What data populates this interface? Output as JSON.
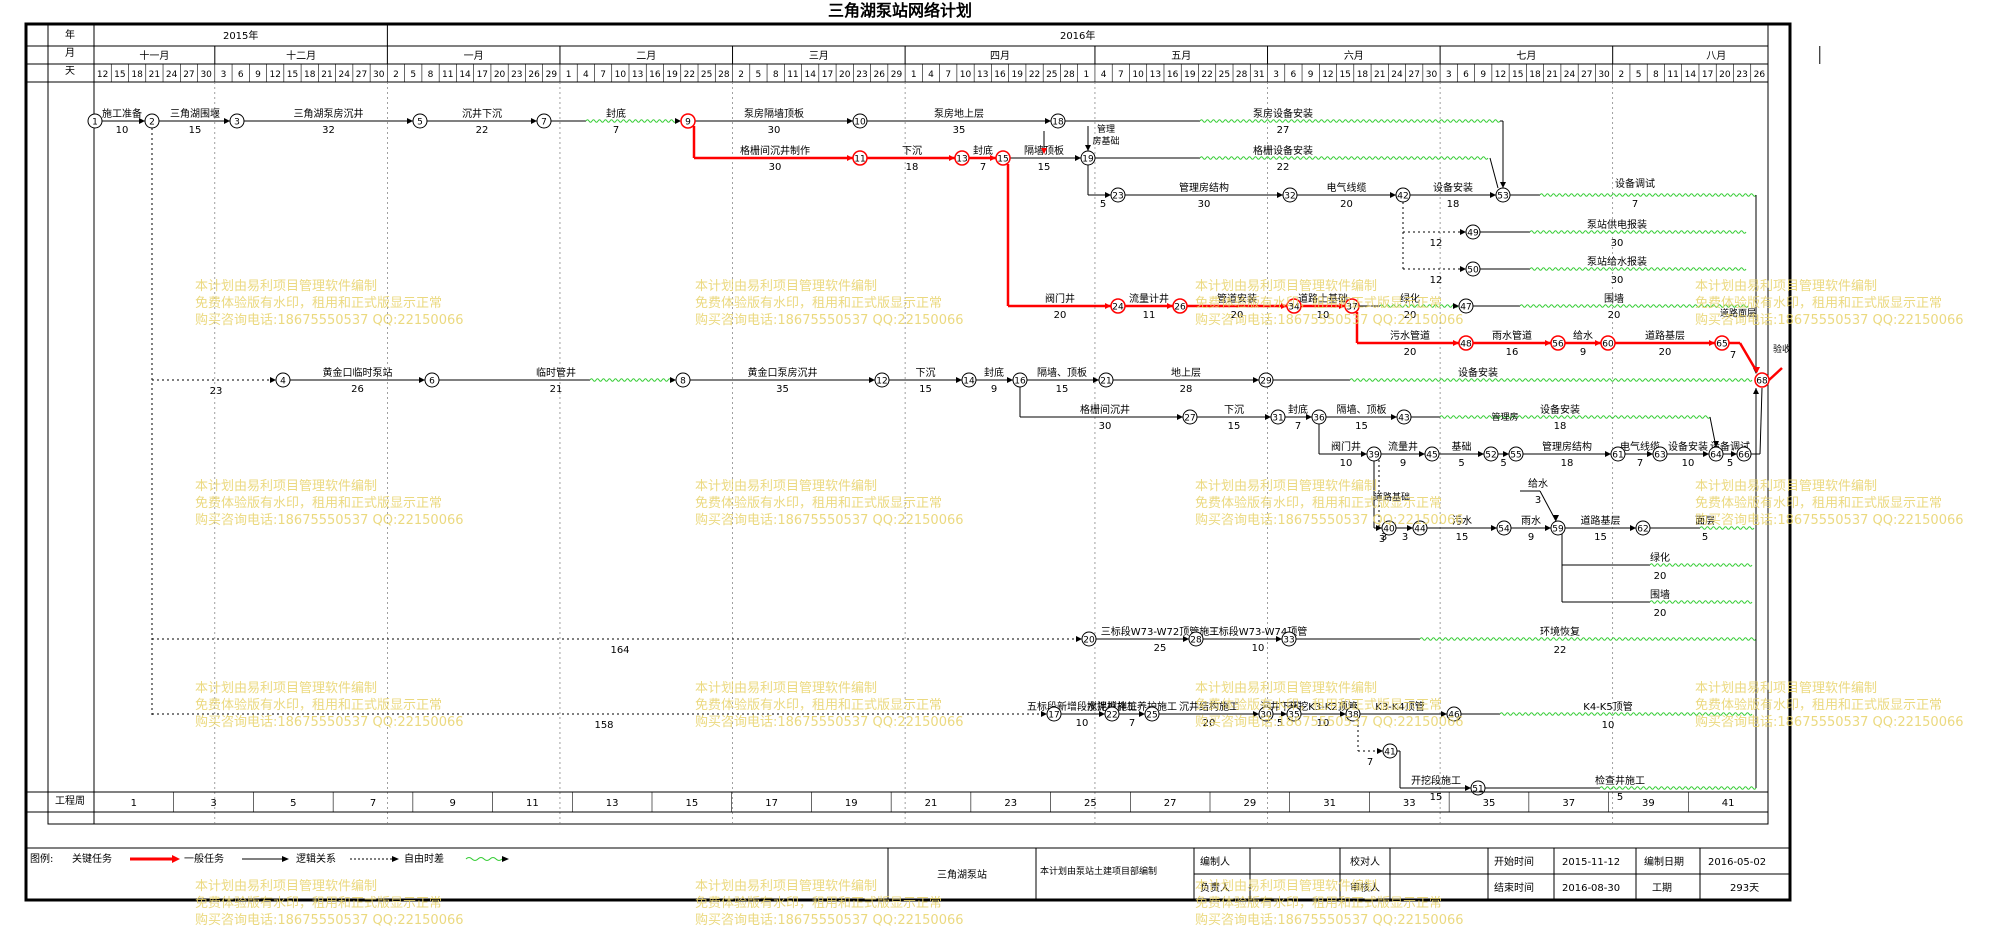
{
  "title": "三角湖泵站网络计划",
  "header": {
    "row_labels": {
      "year": "年",
      "month": "月",
      "day": "天"
    },
    "years": [
      "2015年",
      "2016年"
    ],
    "months": [
      "十一月",
      "十二月",
      "一月",
      "二月",
      "三月",
      "四月",
      "五月",
      "六月",
      "七月",
      "八月"
    ],
    "days": [
      "12",
      "15",
      "18",
      "21",
      "24",
      "27",
      "30",
      "3",
      "6",
      "9",
      "12",
      "15",
      "18",
      "21",
      "24",
      "27",
      "30",
      "2",
      "5",
      "8",
      "11",
      "14",
      "17",
      "20",
      "23",
      "26",
      "29",
      "1",
      "4",
      "7",
      "10",
      "13",
      "16",
      "19",
      "22",
      "25",
      "28",
      "2",
      "5",
      "8",
      "11",
      "14",
      "17",
      "20",
      "23",
      "26",
      "29",
      "1",
      "4",
      "7",
      "10",
      "13",
      "16",
      "19",
      "22",
      "25",
      "28",
      "1",
      "4",
      "7",
      "10",
      "13",
      "16",
      "19",
      "22",
      "25",
      "28",
      "31",
      "3",
      "6",
      "9",
      "12",
      "15",
      "18",
      "21",
      "24",
      "27",
      "30",
      "3",
      "6",
      "9",
      "12",
      "15",
      "18",
      "21",
      "24",
      "27",
      "30",
      "2",
      "5",
      "8",
      "11",
      "14",
      "17",
      "20",
      "23",
      "26"
    ]
  },
  "week_axis": {
    "label": "工程周",
    "values": [
      "1",
      "3",
      "5",
      "7",
      "9",
      "11",
      "13",
      "15",
      "17",
      "19",
      "21",
      "23",
      "25",
      "27",
      "29",
      "31",
      "33",
      "35",
      "37",
      "39",
      "41"
    ]
  },
  "nodes": [
    "1",
    "2",
    "3",
    "4",
    "5",
    "6",
    "7",
    "8",
    "9",
    "10",
    "11",
    "12",
    "13",
    "14",
    "15",
    "16",
    "17",
    "18",
    "19",
    "20",
    "21",
    "22",
    "23",
    "24",
    "25",
    "26",
    "27",
    "28",
    "29",
    "30",
    "31",
    "32",
    "33",
    "34",
    "35",
    "36",
    "37",
    "38",
    "39",
    "40",
    "41",
    "42",
    "43",
    "44",
    "45",
    "46",
    "47",
    "48",
    "49",
    "50",
    "51",
    "52",
    "53",
    "54",
    "55",
    "56",
    "57",
    "58",
    "59",
    "60",
    "61",
    "62",
    "63",
    "64",
    "65",
    "66",
    "68"
  ],
  "tasks": [
    {
      "name": "施工准备",
      "dur": "10"
    },
    {
      "name": "三角湖围堰",
      "dur": "15"
    },
    {
      "name": "三角湖泵房沉井",
      "dur": "32"
    },
    {
      "name": "沉井下沉",
      "dur": "22"
    },
    {
      "name": "封底",
      "dur": "7"
    },
    {
      "name": "泵房隔墙顶板",
      "dur": "30"
    },
    {
      "name": "泵房地上层",
      "dur": "35"
    },
    {
      "name": "泵房设备安装",
      "dur": "27"
    },
    {
      "name": "格栅间沉井制作",
      "dur": "30"
    },
    {
      "name": "下沉",
      "dur": "18"
    },
    {
      "name": "封底",
      "dur": "7"
    },
    {
      "name": "隔墙顶板",
      "dur": "15"
    },
    {
      "name": "管理房基础",
      "dur": "5"
    },
    {
      "name": "格栅设备安装",
      "dur": "22"
    },
    {
      "name": "管理房结构",
      "dur": "30"
    },
    {
      "name": "电气线缆",
      "dur": "20"
    },
    {
      "name": "设备安装",
      "dur": "18"
    },
    {
      "name": "设备调试",
      "dur": "7"
    },
    {
      "name": "泵站供电报装",
      "dur": "30"
    },
    {
      "name": "泵站给水报装",
      "dur": "30"
    },
    {
      "name": "阀门井",
      "dur": "20"
    },
    {
      "name": "流量计井",
      "dur": "11"
    },
    {
      "name": "管道安装",
      "dur": "20"
    },
    {
      "name": "道路土基础",
      "dur": "10"
    },
    {
      "name": "绿化",
      "dur": "20"
    },
    {
      "name": "围墙",
      "dur": "20"
    },
    {
      "name": "污水管道",
      "dur": "20"
    },
    {
      "name": "雨水管道",
      "dur": "16"
    },
    {
      "name": "给水",
      "dur": "9"
    },
    {
      "name": "道路基层",
      "dur": "20"
    },
    {
      "name": "道路面层",
      "dur": "7"
    },
    {
      "name": "验收",
      "dur": ""
    },
    {
      "name": "黄金口临时泵站",
      "dur": "26"
    },
    {
      "name": "临时管井",
      "dur": "21"
    },
    {
      "name": "黄金口泵房沉井",
      "dur": "35"
    },
    {
      "name": "下沉",
      "dur": "15"
    },
    {
      "name": "封底",
      "dur": "9"
    },
    {
      "name": "隔墙、顶板",
      "dur": "15"
    },
    {
      "name": "地上层",
      "dur": "28"
    },
    {
      "name": "设备安装",
      "dur": ""
    },
    {
      "name": "格栅间沉井",
      "dur": "30"
    },
    {
      "name": "下沉",
      "dur": "15"
    },
    {
      "name": "封底",
      "dur": "7"
    },
    {
      "name": "隔墙、顶板",
      "dur": "15"
    },
    {
      "name": "设备安装",
      "dur": "18"
    },
    {
      "name": "阀门井",
      "dur": "10"
    },
    {
      "name": "流量井",
      "dur": "9"
    },
    {
      "name": "管理房基础",
      "dur": "5"
    },
    {
      "name": "管理房结构",
      "dur": "18"
    },
    {
      "name": "电气线缆",
      "dur": "7"
    },
    {
      "name": "设备安装",
      "dur": "10"
    },
    {
      "name": "设备调试",
      "dur": "5"
    },
    {
      "name": "道路基础",
      "dur": "3"
    },
    {
      "name": "污水",
      "dur": "15"
    },
    {
      "name": "给水",
      "dur": "3"
    },
    {
      "name": "雨水",
      "dur": "9"
    },
    {
      "name": "道路基层",
      "dur": "15"
    },
    {
      "name": "面层",
      "dur": "5"
    },
    {
      "name": "绿化",
      "dur": "20"
    },
    {
      "name": "围墙",
      "dur": "20"
    },
    {
      "name": "三标段W73-W72顶管施工",
      "dur": "25"
    },
    {
      "name": "三标段W73-W74顶管",
      "dur": "10"
    },
    {
      "name": "环境恢复",
      "dur": "22"
    },
    {
      "name": "五标段新增段搅拌桩施工",
      "dur": "10"
    },
    {
      "name": "水泥搅拌桩养护施工",
      "dur": "7"
    },
    {
      "name": "沉井结构施工",
      "dur": "20"
    },
    {
      "name": "沉井下沉",
      "dur": "5"
    },
    {
      "name": "开挖K3-K2顶管",
      "dur": "10"
    },
    {
      "name": "K3-K4顶管",
      "dur": ""
    },
    {
      "name": "K4-K5顶管",
      "dur": "10"
    },
    {
      "name": "开挖段施工",
      "dur": "15"
    },
    {
      "name": "检查井施工",
      "dur": "5"
    }
  ],
  "free_floats": {
    "f23": "23",
    "f164": "164",
    "f158": "158",
    "f12a": "12",
    "f12b": "12",
    "f3": "3",
    "f7": "7"
  },
  "legend": {
    "label": "图例:",
    "critical": "关键任务",
    "normal": "一般任务",
    "logic": "逻辑关系",
    "float": "自由时差"
  },
  "info": {
    "project": "三角湖泵站",
    "org": "本计划由泵站土建项目部编制",
    "editor_label": "编制人",
    "checker_label": "校对人",
    "owner_label": "负责人",
    "reviewer_label": "审核人",
    "start_label": "开始时间",
    "start_value": "2015-11-12",
    "end_label": "结束时间",
    "end_value": "2016-08-30",
    "date_label": "编制日期",
    "date_value": "2016-05-02",
    "period_label": "工期",
    "period_value": "293天"
  },
  "watermark": {
    "line1": "本计划由易利项目管理软件编制",
    "line2": "免费体验版有水印，租用和正式版显示正常",
    "line3": "购买咨询电话:18675550537 QQ:22150066"
  },
  "colors": {
    "critical": "#ff0000",
    "normal": "#000000",
    "float": "#33cc33",
    "watermark": "#e8d36a"
  }
}
